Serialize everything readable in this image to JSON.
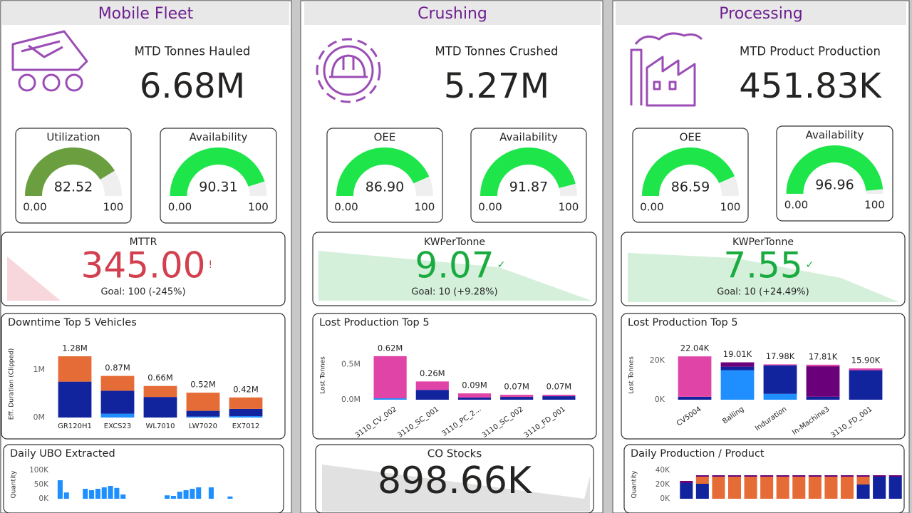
{
  "columns": [
    {
      "title": "Mobile Fleet",
      "kpi": {
        "label": "MTD Tonnes Hauled",
        "value": "6.68M"
      },
      "gauges": [
        {
          "title": "Utilization",
          "value": 82.52,
          "min": {
            "value": 0,
            "label": "0.00"
          },
          "max": 100,
          "color": "#6a9e3f"
        },
        {
          "title": "Availability",
          "value": 90.31,
          "min": {
            "value": 0,
            "label": "0.00"
          },
          "max": 100,
          "color": "#1ee64a"
        }
      ],
      "card": {
        "title": "MTTR",
        "value": "345.00",
        "indicator": "!",
        "color": "#d2404f",
        "goal": "Goal: 100 (-245%)"
      },
      "chart": {
        "type": "bar",
        "title": "Downtime Top 5 Vehicles",
        "y_label": "Eff. Duration (Clipped)",
        "categories": [
          "GR120H1",
          "EXCS23",
          "WL7010",
          "LW7020",
          "EX7012"
        ],
        "series": [
          {
            "color": "#1f8fff",
            "values": [
              0,
              80000,
              0,
              20000,
              30000
            ]
          },
          {
            "color": "#12239e",
            "values": [
              750000,
              480000,
              430000,
              120000,
              150000
            ]
          },
          {
            "color": "#e66c37",
            "values": [
              530000,
              310000,
              230000,
              380000,
              240000
            ]
          }
        ],
        "total_labels": [
          "1.28M",
          "0.87M",
          "0.66M",
          "0.52M",
          "0.42M"
        ],
        "ylim": [
          0,
          1400000
        ],
        "yticks": [
          {
            "value": 0,
            "label": "0M"
          },
          {
            "value": 1000000,
            "label": "1M"
          }
        ]
      },
      "bottom": {
        "type": "bar",
        "title": "Daily UBO Extracted",
        "y_label": "Quantity",
        "categories": [
          null,
          null,
          null,
          null,
          null,
          null,
          null,
          null,
          null,
          null,
          null,
          null,
          null,
          null,
          null,
          null,
          null,
          null,
          null,
          null,
          null,
          null,
          null,
          null,
          null,
          null,
          null,
          null,
          null,
          null
        ],
        "series": [
          {
            "color": "#1f8fff",
            "values": [
              65000,
              22000,
              0,
              0,
              35000,
              30000,
              35000,
              40000,
              45000,
              38000,
              15000,
              0,
              0,
              0,
              0,
              0,
              0,
              12000,
              10000,
              25000,
              30000,
              35000,
              40000,
              0,
              40000,
              0,
              0,
              8000,
              0,
              0
            ]
          }
        ],
        "ylim": [
          0,
          100000
        ],
        "yticks": [
          {
            "value": 0,
            "label": "0K"
          },
          {
            "value": 50000,
            "label": "50K"
          },
          {
            "value": 100000,
            "label": "100K"
          }
        ]
      }
    },
    {
      "title": "Crushing",
      "kpi": {
        "label": "MTD Tonnes Crushed",
        "value": "5.27M"
      },
      "gauges": [
        {
          "title": "OEE",
          "value": 86.9,
          "value_label": "86.90",
          "min": {
            "value": 0,
            "label": "0.00"
          },
          "max": 100,
          "color": "#1ee64a"
        },
        {
          "title": "Availability",
          "value": 91.87,
          "min": {
            "value": 0,
            "label": "0.00"
          },
          "max": 100,
          "color": "#1ee64a"
        }
      ],
      "card": {
        "title": "KWPerTonne",
        "value": "9.07",
        "indicator": "✓",
        "color": "#1aab40",
        "goal": "Goal: 10 (+9.28%)"
      },
      "chart": {
        "type": "bar",
        "title": "Lost Production Top 5",
        "y_label": "Lost Tonnes",
        "categories": [
          "3110_CV_002",
          "3110_SC_001",
          "3110_PC_2...",
          "3110_SC_002",
          "3110_FD_001"
        ],
        "series": [
          {
            "color": "#1f8fff",
            "values": [
              20000,
              0,
              0,
              0,
              0
            ]
          },
          {
            "color": "#12239e",
            "values": [
              0,
              140000,
              30000,
              40000,
              50000
            ]
          },
          {
            "color": "#e044a7",
            "values": [
              600000,
              120000,
              60000,
              30000,
              20000
            ]
          }
        ],
        "total_labels": [
          "0.62M",
          "0.26M",
          "0.09M",
          "0.07M",
          "0.07M"
        ],
        "ylim": [
          0,
          700000
        ],
        "yticks": [
          {
            "value": 0,
            "label": "0.0M"
          },
          {
            "value": 500000,
            "label": "0.5M"
          }
        ]
      },
      "bottom": {
        "type": "card",
        "title": "CO Stocks",
        "value": "898.66K"
      }
    },
    {
      "title": "Processing",
      "kpi": {
        "label": "MTD Product Production",
        "value": "451.83K"
      },
      "gauges": [
        {
          "title": "OEE",
          "value": 86.59,
          "min": {
            "value": 0,
            "label": "0.00"
          },
          "max": 100,
          "color": "#1ee64a"
        },
        {
          "title": "Availability",
          "value": 96.96,
          "min": {
            "value": 0,
            "label": "0.00"
          },
          "max": 100,
          "color": "#1ee64a"
        }
      ],
      "card": {
        "title": "KWPerTonne",
        "value": "7.55",
        "indicator": "✓",
        "color": "#1aab40",
        "goal": "Goal: 10 (+24.49%)"
      },
      "chart": {
        "type": "bar",
        "title": "Lost Production Top 5",
        "y_label": "Lost Tonnes",
        "categories": [
          "CV5004",
          "Balling",
          "Induration",
          "In-Machine3",
          "3110_FD_001"
        ],
        "series": [
          {
            "color": "#1f8fff",
            "values": [
              0,
              15000,
              3000,
              0,
              0
            ]
          },
          {
            "color": "#12239e",
            "values": [
              1500,
              1800,
              14500,
              1500,
              15000
            ]
          },
          {
            "color": "#6b007b",
            "values": [
              0,
              2210,
              0,
              15500,
              0
            ]
          },
          {
            "color": "#e044a7",
            "values": [
              20540,
              0,
              480,
              810,
              900
            ]
          }
        ],
        "total_labels": [
          "22.04K",
          "19.01K",
          "17.98K",
          "17.81K",
          "15.90K"
        ],
        "ylim": [
          0,
          25000
        ],
        "yticks": [
          {
            "value": 0,
            "label": "0K"
          },
          {
            "value": 20000,
            "label": "20K"
          }
        ]
      },
      "bottom": {
        "type": "bar",
        "title": "Daily Production / Product",
        "y_label": "Quantity",
        "categories": [
          null,
          null,
          null,
          null,
          null,
          null,
          null,
          null,
          null,
          null,
          null,
          null,
          null,
          null
        ],
        "series": [
          {
            "color": "#12239e",
            "values": [
              22000,
              21000,
              0,
              0,
              0,
              0,
              0,
              0,
              0,
              0,
              0,
              20000,
              31000,
              31000
            ]
          },
          {
            "color": "#e66c37",
            "values": [
              0,
              10000,
              31000,
              31000,
              31000,
              31000,
              31000,
              31000,
              31000,
              31000,
              31000,
              11000,
              0,
              0
            ]
          },
          {
            "color": "#6b007b",
            "values": [
              3000,
              2000,
              2000,
              2000,
              2000,
              2000,
              2000,
              2000,
              2000,
              2000,
              2000,
              2000,
              2000,
              2000
            ]
          }
        ],
        "ylim": [
          0,
          40000
        ],
        "yticks": [
          {
            "value": 0,
            "label": "0K"
          },
          {
            "value": 20000,
            "label": "20K"
          },
          {
            "value": 40000,
            "label": "40K"
          }
        ]
      }
    }
  ]
}
